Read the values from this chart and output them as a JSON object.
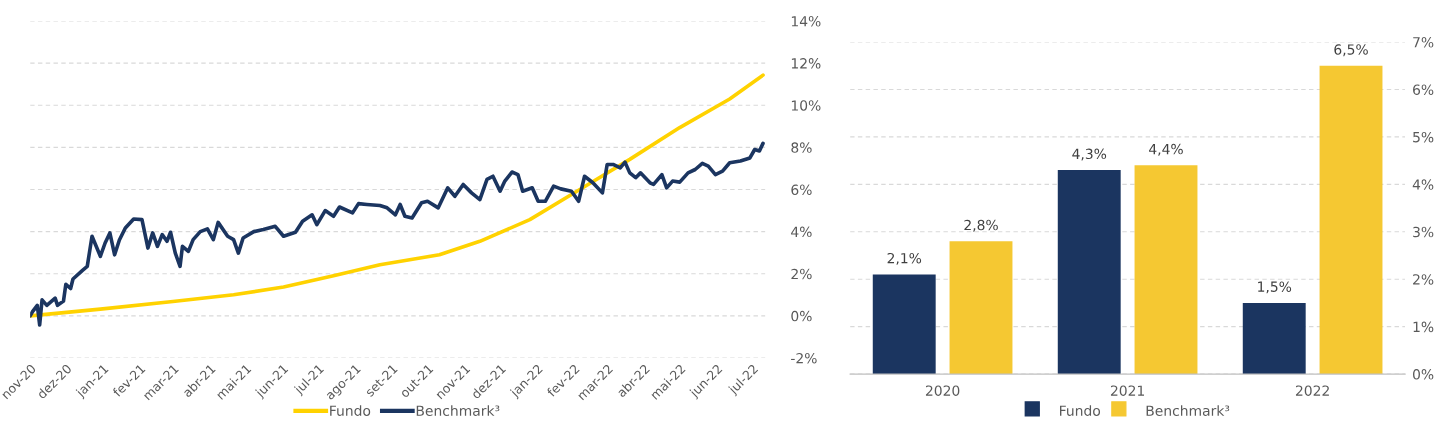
{
  "chart_data": [
    {
      "type": "line",
      "x": [
        "2020-11-01",
        "2020-12-30",
        "2021-03-01",
        "2021-04-21",
        "2021-06-02",
        "2021-07-14",
        "2021-08-22",
        "2021-10-11",
        "2021-11-14",
        "2021-12-26",
        "2022-02-06",
        "2022-03-20",
        "2022-05-01",
        "2022-06-12",
        "2022-07-10"
      ],
      "series": [
        {
          "name": "Fundo",
          "color": "#ffd200",
          "values": [
            0,
            0.32,
            0.68,
            1.0,
            1.37,
            1.9,
            2.43,
            2.9,
            3.54,
            4.57,
            6.0,
            7.43,
            8.94,
            10.3,
            11.43
          ]
        },
        {
          "name": "Benchmark³",
          "color": "#1b3560",
          "x": [
            "2020-11-01",
            "2020-11-03",
            "2020-11-07",
            "2020-11-09",
            "2020-11-11",
            "2020-11-15",
            "2020-11-22",
            "2020-11-24",
            "2020-11-29",
            "2020-12-01",
            "2020-12-05",
            "2020-12-07",
            "2020-12-15",
            "2020-12-19",
            "2020-12-23",
            "2020-12-30",
            "2021-01-03",
            "2021-01-07",
            "2021-01-11",
            "2021-01-15",
            "2021-01-20",
            "2021-01-27",
            "2021-02-03",
            "2021-02-08",
            "2021-02-12",
            "2021-02-16",
            "2021-02-20",
            "2021-02-24",
            "2021-02-27",
            "2021-03-03",
            "2021-03-07",
            "2021-03-09",
            "2021-03-14",
            "2021-03-18",
            "2021-03-24",
            "2021-03-30",
            "2021-04-04",
            "2021-04-08",
            "2021-04-16",
            "2021-04-21",
            "2021-04-25",
            "2021-04-29",
            "2021-05-08",
            "2021-05-16",
            "2021-05-26",
            "2021-06-02",
            "2021-06-12",
            "2021-06-18",
            "2021-06-26",
            "2021-06-30",
            "2021-07-07",
            "2021-07-14",
            "2021-07-19",
            "2021-07-30",
            "2021-08-04",
            "2021-08-11",
            "2021-08-22",
            "2021-08-28",
            "2021-09-04",
            "2021-09-08",
            "2021-09-12",
            "2021-09-18",
            "2021-09-26",
            "2021-10-01",
            "2021-10-10",
            "2021-10-18",
            "2021-10-24",
            "2021-10-31",
            "2021-11-07",
            "2021-11-14",
            "2021-11-20",
            "2021-11-25",
            "2021-12-01",
            "2021-12-05",
            "2021-12-11",
            "2021-12-16",
            "2021-12-20",
            "2021-12-28",
            "2022-01-02",
            "2022-01-08",
            "2022-01-15",
            "2022-01-21",
            "2022-01-30",
            "2022-02-05",
            "2022-02-10",
            "2022-02-17",
            "2022-02-25",
            "2022-03-01",
            "2022-03-06",
            "2022-03-12",
            "2022-03-16",
            "2022-03-20",
            "2022-03-25",
            "2022-03-29",
            "2022-04-06",
            "2022-04-09",
            "2022-04-16",
            "2022-04-20",
            "2022-04-25",
            "2022-05-01",
            "2022-05-08",
            "2022-05-14",
            "2022-05-20",
            "2022-05-25",
            "2022-05-31",
            "2022-06-06",
            "2022-06-12",
            "2022-06-21",
            "2022-06-29",
            "2022-07-03",
            "2022-07-07",
            "2022-07-10"
          ],
          "values": [
            0,
            0.2,
            0.5,
            -0.43,
            0.76,
            0.5,
            0.84,
            0.5,
            0.7,
            1.5,
            1.3,
            1.75,
            2.16,
            2.35,
            3.78,
            2.83,
            3.46,
            3.94,
            2.9,
            3.6,
            4.17,
            4.6,
            4.57,
            3.22,
            3.94,
            3.3,
            3.86,
            3.54,
            3.97,
            2.98,
            2.35,
            3.3,
            3.06,
            3.62,
            4.0,
            4.13,
            3.62,
            4.44,
            3.78,
            3.62,
            2.98,
            3.7,
            4.0,
            4.1,
            4.25,
            3.78,
            3.97,
            4.49,
            4.8,
            4.33,
            5.0,
            4.73,
            5.17,
            4.89,
            5.33,
            5.29,
            5.24,
            5.13,
            4.8,
            5.29,
            4.73,
            4.65,
            5.37,
            5.44,
            5.13,
            6.08,
            5.68,
            6.24,
            5.84,
            5.52,
            6.48,
            6.63,
            5.92,
            6.4,
            6.83,
            6.71,
            5.92,
            6.08,
            5.44,
            5.44,
            6.16,
            6.03,
            5.92,
            5.44,
            6.63,
            6.32,
            5.84,
            7.19,
            7.19,
            7.03,
            7.3,
            6.79,
            6.56,
            6.79,
            6.32,
            6.24,
            6.71,
            6.08,
            6.4,
            6.35,
            6.79,
            6.95,
            7.24,
            7.11,
            6.71,
            6.87,
            7.27,
            7.35,
            7.5,
            7.9,
            7.83,
            8.19
          ]
        }
      ],
      "xlim": [
        "2020-11-01",
        "2022-07-12"
      ],
      "xticks": [
        {
          "value": "2020-11-01",
          "label": "nov-20"
        },
        {
          "value": "2020-12-01",
          "label": "dez-20"
        },
        {
          "value": "2021-01-01",
          "label": "jan-21"
        },
        {
          "value": "2021-02-01",
          "label": "fev-21"
        },
        {
          "value": "2021-03-01",
          "label": "mar-21"
        },
        {
          "value": "2021-04-01",
          "label": "abr-21"
        },
        {
          "value": "2021-05-01",
          "label": "mai-21"
        },
        {
          "value": "2021-06-01",
          "label": "jun-21"
        },
        {
          "value": "2021-07-01",
          "label": "jul-21"
        },
        {
          "value": "2021-08-01",
          "label": "ago-21"
        },
        {
          "value": "2021-09-01",
          "label": "set-21"
        },
        {
          "value": "2021-10-01",
          "label": "out-21"
        },
        {
          "value": "2021-11-01",
          "label": "nov-21"
        },
        {
          "value": "2021-12-01",
          "label": "dez-21"
        },
        {
          "value": "2022-01-01",
          "label": "jan-22"
        },
        {
          "value": "2022-02-01",
          "label": "fev-22"
        },
        {
          "value": "2022-03-01",
          "label": "mar-22"
        },
        {
          "value": "2022-04-01",
          "label": "abr-22"
        },
        {
          "value": "2022-05-01",
          "label": "mai-22"
        },
        {
          "value": "2022-06-01",
          "label": "jun-22"
        },
        {
          "value": "2022-07-01",
          "label": "jul-22"
        }
      ],
      "ylim": [
        -2,
        14
      ],
      "yticks": [
        {
          "value": -2,
          "label": "-2%"
        },
        {
          "value": 0,
          "label": "0%"
        },
        {
          "value": 2,
          "label": "2%"
        },
        {
          "value": 4,
          "label": "4%"
        },
        {
          "value": 6,
          "label": "6%"
        },
        {
          "value": 8,
          "label": "8%"
        },
        {
          "value": 10,
          "label": "10%"
        },
        {
          "value": 12,
          "label": "12%"
        },
        {
          "value": 14,
          "label": "14%"
        }
      ],
      "grid": "y",
      "legend": "bottom",
      "line_style": "solid",
      "marker": "none"
    },
    {
      "type": "bar",
      "categories": [
        "2020",
        "2021",
        "2022"
      ],
      "series": [
        {
          "name": "Fundo",
          "color": "#1b3560",
          "values": [
            2.1,
            4.3,
            1.5
          ],
          "value_labels": [
            "2,1%",
            "4,3%",
            "1,5%"
          ]
        },
        {
          "name": "Benchmark³",
          "color": "#f5c832",
          "values": [
            2.8,
            4.4,
            6.5
          ],
          "value_labels": [
            "2,8%",
            "4,4%",
            "6,5%"
          ]
        }
      ],
      "ylim": [
        0,
        7
      ],
      "yticks": [
        {
          "value": 0,
          "label": "0%"
        },
        {
          "value": 1,
          "label": "1%"
        },
        {
          "value": 2,
          "label": "2%"
        },
        {
          "value": 3,
          "label": "3%"
        },
        {
          "value": 4,
          "label": "4%"
        },
        {
          "value": 5,
          "label": "5%"
        },
        {
          "value": 6,
          "label": "6%"
        },
        {
          "value": 7,
          "label": "7%"
        }
      ],
      "grid": "y",
      "legend": "bottom"
    }
  ]
}
